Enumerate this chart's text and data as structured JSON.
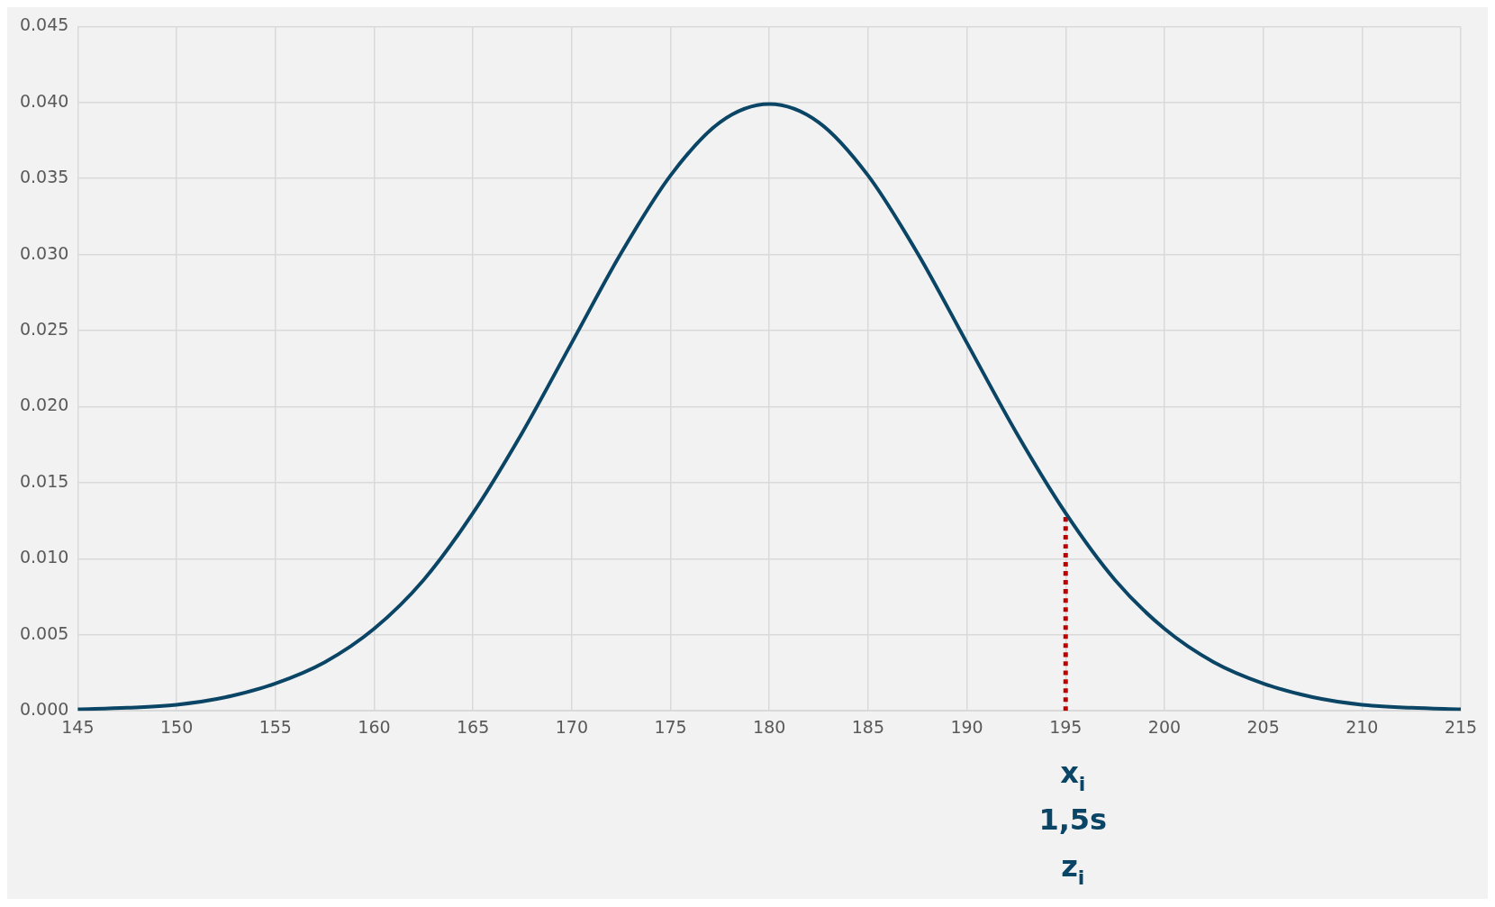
{
  "chart_data": {
    "type": "line",
    "x": [
      145,
      147.5,
      150,
      152.5,
      155,
      157.5,
      160,
      162.5,
      165,
      167.5,
      170,
      172.5,
      175,
      177.5,
      180,
      182.5,
      185,
      187.5,
      190,
      192.5,
      195,
      197.5,
      200,
      202.5,
      205,
      207.5,
      210,
      212.5,
      215
    ],
    "series": [
      {
        "color": "#0b4566",
        "values": [
          0.0001,
          0.0002,
          0.0004,
          0.0009,
          0.0018,
          0.0032,
          0.0054,
          0.0086,
          0.013,
          0.0183,
          0.0242,
          0.0301,
          0.0352,
          0.0387,
          0.0399,
          0.0387,
          0.0352,
          0.0301,
          0.0242,
          0.0183,
          0.013,
          0.0086,
          0.0054,
          0.0032,
          0.0018,
          0.0009,
          0.0004,
          0.0002,
          0.0001
        ]
      },
      {
        "color": "#c00000",
        "x": [
          195,
          195
        ],
        "values": [
          0,
          0.013
        ],
        "line_style": "dotted"
      }
    ],
    "xlim": [
      145,
      215
    ],
    "xticks": [
      145,
      150,
      155,
      160,
      165,
      170,
      175,
      180,
      185,
      190,
      195,
      200,
      205,
      210,
      215
    ],
    "ylim": [
      0,
      0.045
    ],
    "yticks": [
      {
        "value": 0,
        "label": "0.000"
      },
      {
        "value": 0.005,
        "label": "0.005"
      },
      {
        "value": 0.01,
        "label": "0.010"
      },
      {
        "value": 0.015,
        "label": "0.015"
      },
      {
        "value": 0.02,
        "label": "0.020"
      },
      {
        "value": 0.025,
        "label": "0.025"
      },
      {
        "value": 0.03,
        "label": "0.030"
      },
      {
        "value": 0.035,
        "label": "0.035"
      },
      {
        "value": 0.04,
        "label": "0.040"
      },
      {
        "value": 0.045,
        "label": "0.045"
      }
    ],
    "grid": true,
    "marker": "none",
    "line_style": "solid",
    "annotations": [
      "x$_{i}$",
      "1,5s",
      "z$_{i}$"
    ]
  }
}
